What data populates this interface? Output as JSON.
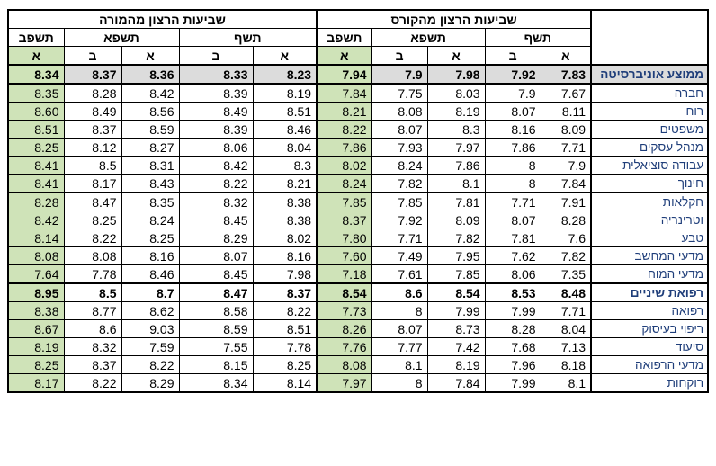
{
  "groups": {
    "teacher": "שביעות הרצון מהמורה",
    "course": "שביעות הרצון מהקורס"
  },
  "years": [
    "תשפב",
    "תשפא",
    "תשף"
  ],
  "semesters": {
    "a": "א",
    "b": "ב"
  },
  "average": {
    "label": "ממוצע אוניברסיטה",
    "teacher": [
      "8.34",
      "8.37",
      "8.36",
      "8.33",
      "8.23"
    ],
    "course": [
      "7.94",
      "7.9",
      "7.98",
      "7.92",
      "7.83"
    ]
  },
  "rows": [
    {
      "label": "חברה",
      "teacher": [
        "8.35",
        "8.28",
        "8.42",
        "8.39",
        "8.19"
      ],
      "course": [
        "7.84",
        "7.75",
        "8.03",
        "7.9",
        "7.67"
      ]
    },
    {
      "label": "רוח",
      "teacher": [
        "8.60",
        "8.49",
        "8.56",
        "8.49",
        "8.51"
      ],
      "course": [
        "8.21",
        "8.08",
        "8.19",
        "8.07",
        "8.11"
      ]
    },
    {
      "label": "משפטים",
      "teacher": [
        "8.51",
        "8.37",
        "8.59",
        "8.39",
        "8.46"
      ],
      "course": [
        "8.22",
        "8.07",
        "8.3",
        "8.16",
        "8.09"
      ]
    },
    {
      "label": "מנהל עסקים",
      "teacher": [
        "8.25",
        "8.12",
        "8.27",
        "8.06",
        "8.04"
      ],
      "course": [
        "7.86",
        "7.93",
        "7.97",
        "7.86",
        "7.71"
      ]
    },
    {
      "label": "עבודה סוציאלית",
      "teacher": [
        "8.41",
        "8.5",
        "8.31",
        "8.42",
        "8.3"
      ],
      "course": [
        "8.02",
        "8.24",
        "7.86",
        "8",
        "7.9"
      ]
    },
    {
      "label": "חינוך",
      "teacher": [
        "8.41",
        "8.17",
        "8.43",
        "8.22",
        "8.21"
      ],
      "course": [
        "8.24",
        "7.82",
        "8.1",
        "8",
        "7.84"
      ]
    },
    {
      "label": "חקלאות",
      "teacher": [
        "8.28",
        "8.47",
        "8.35",
        "8.32",
        "8.38"
      ],
      "course": [
        "7.85",
        "7.85",
        "7.81",
        "7.71",
        "7.91"
      ]
    },
    {
      "label": "וטרינריה",
      "teacher": [
        "8.42",
        "8.25",
        "8.24",
        "8.45",
        "8.38"
      ],
      "course": [
        "8.37",
        "7.92",
        "8.09",
        "8.07",
        "8.28"
      ]
    },
    {
      "label": "טבע",
      "teacher": [
        "8.14",
        "8.22",
        "8.25",
        "8.29",
        "8.02"
      ],
      "course": [
        "7.80",
        "7.71",
        "7.82",
        "7.81",
        "7.6"
      ]
    },
    {
      "label": "מדעי המחשב",
      "teacher": [
        "8.08",
        "8.08",
        "8.16",
        "8.07",
        "8.16"
      ],
      "course": [
        "7.60",
        "7.49",
        "7.95",
        "7.62",
        "7.82"
      ]
    },
    {
      "label": "מדעי המוח",
      "teacher": [
        "7.64",
        "7.78",
        "8.46",
        "8.45",
        "7.98"
      ],
      "course": [
        "7.18",
        "7.61",
        "7.85",
        "8.06",
        "7.35"
      ]
    },
    {
      "label": "רפואת שיניים",
      "teacher": [
        "8.95",
        "8.5",
        "8.7",
        "8.47",
        "8.37"
      ],
      "course": [
        "8.54",
        "8.6",
        "8.54",
        "8.53",
        "8.48"
      ]
    },
    {
      "label": "רפואה",
      "teacher": [
        "8.38",
        "8.77",
        "8.62",
        "8.58",
        "8.22"
      ],
      "course": [
        "7.73",
        "8",
        "7.99",
        "7.99",
        "7.71"
      ]
    },
    {
      "label": "ריפוי בעיסוק",
      "teacher": [
        "8.67",
        "8.6",
        "9.03",
        "8.59",
        "8.51"
      ],
      "course": [
        "8.26",
        "8.07",
        "8.73",
        "8.28",
        "8.04"
      ]
    },
    {
      "label": "סיעוד",
      "teacher": [
        "8.19",
        "8.32",
        "7.59",
        "7.55",
        "7.78"
      ],
      "course": [
        "7.76",
        "7.77",
        "7.42",
        "7.68",
        "7.13"
      ]
    },
    {
      "label": "מדעי הרפואה",
      "teacher": [
        "8.25",
        "8.37",
        "8.22",
        "8.15",
        "8.25"
      ],
      "course": [
        "8.08",
        "8.1",
        "8.19",
        "7.96",
        "8.18"
      ]
    },
    {
      "label": "רוקחות",
      "teacher": [
        "8.17",
        "8.22",
        "8.29",
        "8.34",
        "8.14"
      ],
      "course": [
        "7.97",
        "8",
        "7.84",
        "7.99",
        "8.1"
      ]
    }
  ],
  "highlight_row": "רפואת שיניים",
  "colors": {
    "green": "#cfe3b8",
    "avg_gray": "#dcdcdc",
    "label_blue": "#1f3e7a",
    "highlight_purple": "#7d3fc0"
  }
}
